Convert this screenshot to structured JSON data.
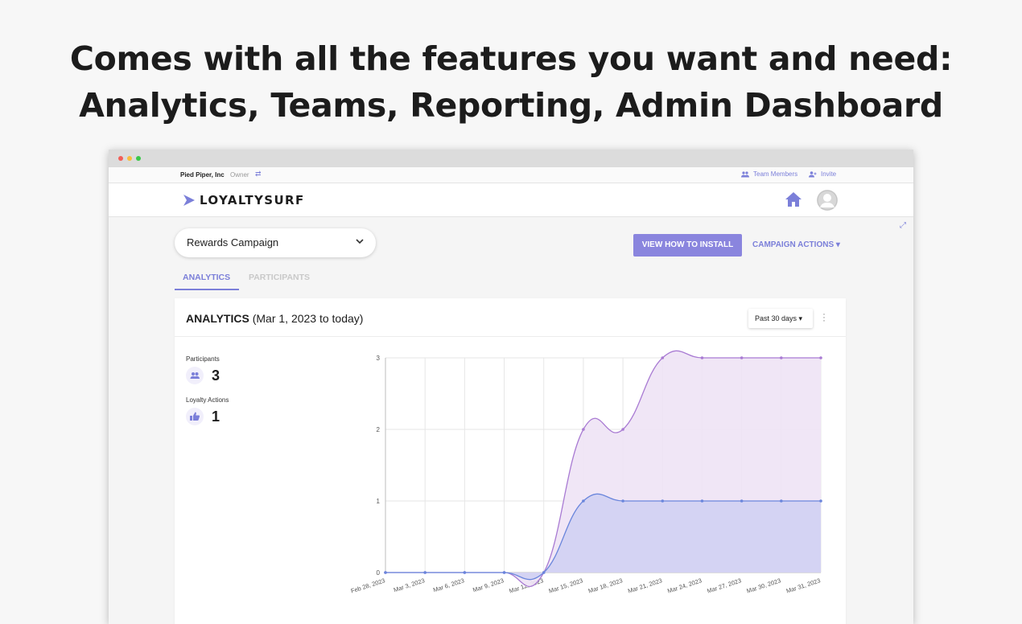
{
  "headline": {
    "line1": "Comes with all the features you want and need:",
    "line2": "Analytics, Teams, Reporting, Admin Dashboard"
  },
  "topbar": {
    "org": "Pied Piper, Inc",
    "role": "Owner",
    "team_members": "Team Members",
    "invite": "Invite"
  },
  "nav": {
    "logo": "LOYALTYSURF"
  },
  "campaign": {
    "selected": "Rewards Campaign"
  },
  "buttons": {
    "install": "VIEW HOW TO INSTALL",
    "actions": "CAMPAIGN ACTIONS"
  },
  "tabs": [
    {
      "label": "ANALYTICS",
      "active": true
    },
    {
      "label": "PARTICIPANTS",
      "active": false
    }
  ],
  "analytics": {
    "title": "ANALYTICS",
    "period": "(Mar 1, 2023 to today)",
    "range": "Past 30 days",
    "stats": [
      {
        "label": "Participants",
        "value": "3",
        "icon": "users-icon"
      },
      {
        "label": "Loyalty Actions",
        "value": "1",
        "icon": "thumbs-up-icon"
      }
    ]
  },
  "colors": {
    "accent": "#7b7fd9",
    "button": "#8a85de",
    "participants_line": "#a97bd3",
    "participants_fill": "#eee3f5",
    "actions_line": "#6a86dc",
    "actions_fill": "#d0d0f3"
  },
  "chart_data": {
    "type": "area",
    "x": [
      "Feb 28, 2023",
      "Mar 3, 2023",
      "Mar 6, 2023",
      "Mar 9, 2023",
      "Mar 12, 2023",
      "Mar 15, 2023",
      "Mar 18, 2023",
      "Mar 21, 2023",
      "Mar 24, 2023",
      "Mar 27, 2023",
      "Mar 30, 2023",
      "Mar 31, 2023"
    ],
    "series": [
      {
        "values": [
          0,
          0,
          0,
          0,
          0,
          2,
          2,
          3,
          3,
          3,
          3,
          3
        ]
      },
      {
        "values": [
          0,
          0,
          0,
          0,
          0,
          1,
          1,
          1,
          1,
          1,
          1,
          1
        ]
      }
    ],
    "yticks": [
      0,
      1,
      2,
      3
    ],
    "ylim": [
      0,
      3
    ],
    "grid": true
  }
}
